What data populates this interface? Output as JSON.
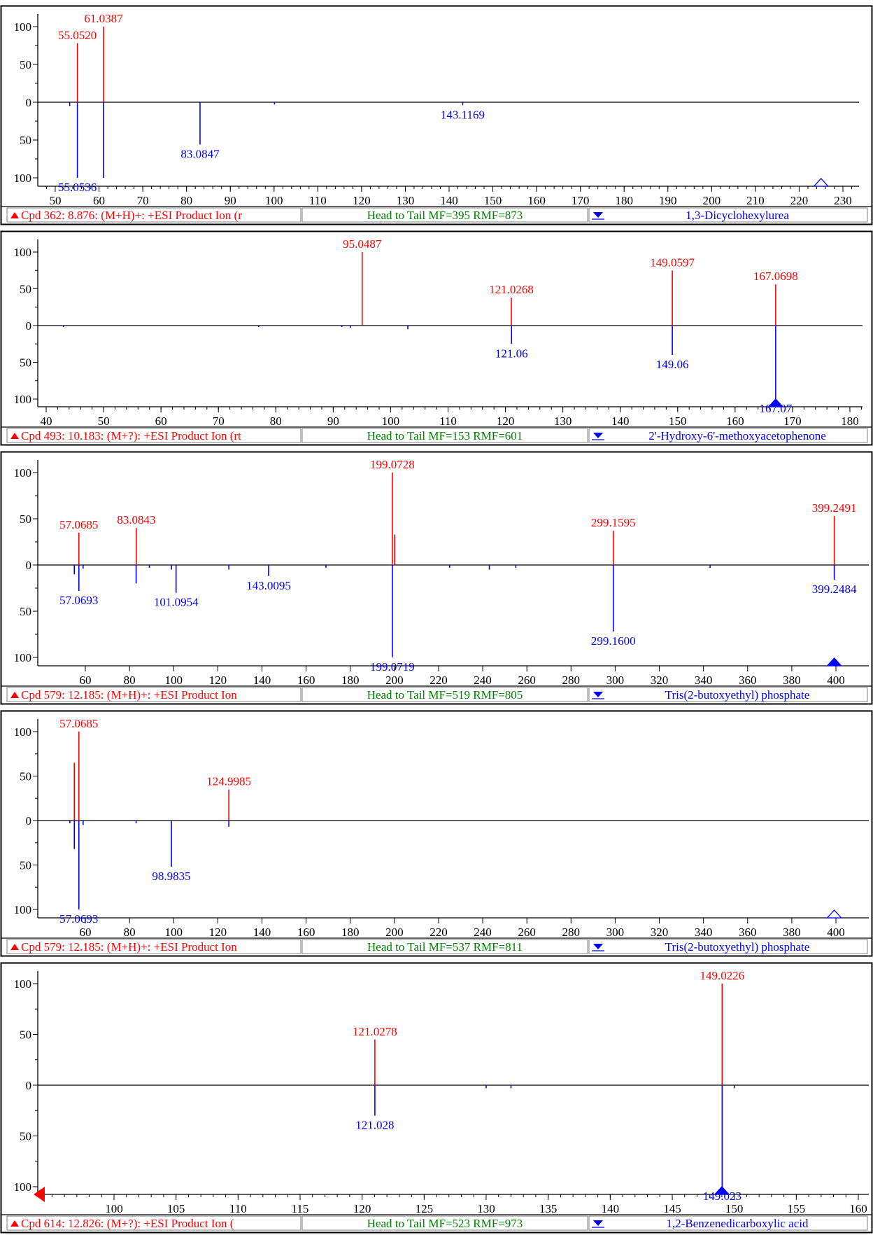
{
  "colors": {
    "library": "#ff0000",
    "sample": "#0000ff",
    "score_text": "#008000",
    "frame": "#000000",
    "status_bg": "#ffffff"
  },
  "chart_data": [
    {
      "type": "bar",
      "subtype": "head-to-tail mass spectrum",
      "xlim": [
        45,
        234
      ],
      "ylim": [
        -100,
        100
      ],
      "x_ticks": [
        50,
        60,
        70,
        80,
        90,
        100,
        110,
        120,
        130,
        140,
        150,
        160,
        170,
        180,
        190,
        200,
        210,
        220,
        230
      ],
      "y_ticks_top": [
        "100",
        "50",
        "0"
      ],
      "y_ticks_bottom": [
        "50",
        "100"
      ],
      "marker": {
        "x": 225,
        "style": "hollow-triangle"
      },
      "head_peaks": [
        {
          "mz": 55.052,
          "intensity": 78,
          "label": "55.0520"
        },
        {
          "mz": 61.0387,
          "intensity": 100,
          "label": "61.0387"
        }
      ],
      "tail_peaks": [
        {
          "mz": 53.3,
          "intensity": 5,
          "label": ""
        },
        {
          "mz": 55.0536,
          "intensity": 100,
          "label": "55.0536"
        },
        {
          "mz": 61.0,
          "intensity": 100,
          "label": ""
        },
        {
          "mz": 83.0847,
          "intensity": 56,
          "label": "83.0847"
        },
        {
          "mz": 100.1,
          "intensity": 3,
          "label": ""
        },
        {
          "mz": 143.1169,
          "intensity": 4,
          "label": "143.1169"
        }
      ],
      "status": {
        "compound": "Cpd 362: 8.876: (M+H)+: +ESI Product Ion (r",
        "score": "Head to Tail MF=395 RMF=873",
        "library_hit": "1,3-Dicyclohexylurea"
      }
    },
    {
      "type": "bar",
      "subtype": "head-to-tail mass spectrum",
      "xlim": [
        36,
        183
      ],
      "ylim": [
        -100,
        100
      ],
      "x_ticks": [
        40,
        50,
        60,
        70,
        80,
        90,
        100,
        110,
        120,
        130,
        140,
        150,
        160,
        170,
        180
      ],
      "y_ticks_top": [
        "100",
        "50",
        "0"
      ],
      "y_ticks_bottom": [
        "50",
        "100"
      ],
      "marker": {
        "x": 167.07,
        "style": "filled-triangle"
      },
      "head_peaks": [
        {
          "mz": 95.0487,
          "intensity": 100,
          "label": "95.0487"
        },
        {
          "mz": 121.0268,
          "intensity": 38,
          "label": "121.0268"
        },
        {
          "mz": 149.0597,
          "intensity": 75,
          "label": "149.0597"
        },
        {
          "mz": 167.0698,
          "intensity": 56,
          "label": "167.0698"
        }
      ],
      "tail_peaks": [
        {
          "mz": 43.0,
          "intensity": 2,
          "label": ""
        },
        {
          "mz": 77.0,
          "intensity": 2,
          "label": ""
        },
        {
          "mz": 91.5,
          "intensity": 2,
          "label": ""
        },
        {
          "mz": 93.0,
          "intensity": 3,
          "label": ""
        },
        {
          "mz": 103.0,
          "intensity": 5,
          "label": ""
        },
        {
          "mz": 121.06,
          "intensity": 25,
          "label": "121.06"
        },
        {
          "mz": 149.06,
          "intensity": 40,
          "label": "149.06"
        },
        {
          "mz": 167.07,
          "intensity": 100,
          "label": "167.07"
        }
      ],
      "status": {
        "compound": "Cpd 493: 10.183: (M+?): +ESI Product Ion (rt",
        "score": "Head to Tail MF=153 RMF=601",
        "library_hit": "2'-Hydroxy-6'-methoxyacetophenone"
      }
    },
    {
      "type": "bar",
      "subtype": "head-to-tail mass spectrum",
      "xlim": [
        37,
        420
      ],
      "ylim": [
        -100,
        100
      ],
      "x_ticks": [
        60,
        80,
        100,
        120,
        140,
        160,
        180,
        200,
        220,
        240,
        260,
        280,
        300,
        320,
        340,
        360,
        380,
        400
      ],
      "y_ticks_top": [
        "100",
        "50",
        "0"
      ],
      "y_ticks_bottom": [
        "50",
        "100"
      ],
      "marker": {
        "x": 399.25,
        "style": "filled-triangle"
      },
      "head_peaks": [
        {
          "mz": 57.0685,
          "intensity": 35,
          "label": "57.0685"
        },
        {
          "mz": 83.0843,
          "intensity": 40,
          "label": "83.0843"
        },
        {
          "mz": 199.0728,
          "intensity": 100,
          "label": "199.0728"
        },
        {
          "mz": 200.07,
          "intensity": 33,
          "label": ""
        },
        {
          "mz": 299.1595,
          "intensity": 37,
          "label": "299.1595"
        },
        {
          "mz": 399.2491,
          "intensity": 53,
          "label": "399.2491"
        }
      ],
      "tail_peaks": [
        {
          "mz": 55.0,
          "intensity": 10,
          "label": ""
        },
        {
          "mz": 57.0693,
          "intensity": 28,
          "label": "57.0693"
        },
        {
          "mz": 59.0,
          "intensity": 4,
          "label": ""
        },
        {
          "mz": 83.0,
          "intensity": 20,
          "label": ""
        },
        {
          "mz": 89.0,
          "intensity": 3,
          "label": ""
        },
        {
          "mz": 99.0,
          "intensity": 5,
          "label": ""
        },
        {
          "mz": 101.0954,
          "intensity": 30,
          "label": "101.0954"
        },
        {
          "mz": 125.0,
          "intensity": 5,
          "label": ""
        },
        {
          "mz": 143.0095,
          "intensity": 12,
          "label": "143.0095"
        },
        {
          "mz": 169.0,
          "intensity": 3,
          "label": ""
        },
        {
          "mz": 199.0719,
          "intensity": 100,
          "label": "199.0719"
        },
        {
          "mz": 225.0,
          "intensity": 3,
          "label": ""
        },
        {
          "mz": 243.0,
          "intensity": 5,
          "label": ""
        },
        {
          "mz": 255.0,
          "intensity": 3,
          "label": ""
        },
        {
          "mz": 299.16,
          "intensity": 72,
          "label": "299.1600"
        },
        {
          "mz": 343.0,
          "intensity": 3,
          "label": ""
        },
        {
          "mz": 399.2484,
          "intensity": 16,
          "label": "399.2484"
        }
      ],
      "status": {
        "compound": "Cpd 579: 12.185: (M+H)+: +ESI Product Ion",
        "score": "Head to Tail MF=519 RMF=805",
        "library_hit": "Tris(2-butoxyethyl) phosphate"
      }
    },
    {
      "type": "bar",
      "subtype": "head-to-tail mass spectrum",
      "xlim": [
        37,
        420
      ],
      "ylim": [
        -100,
        100
      ],
      "x_ticks": [
        60,
        80,
        100,
        120,
        140,
        160,
        180,
        200,
        220,
        240,
        260,
        280,
        300,
        320,
        340,
        360,
        380,
        400
      ],
      "y_ticks_top": [
        "100",
        "50",
        "0"
      ],
      "y_ticks_bottom": [
        "50",
        "100"
      ],
      "marker": {
        "x": 399.25,
        "style": "hollow-triangle"
      },
      "head_peaks": [
        {
          "mz": 55.0,
          "intensity": 65,
          "label": ""
        },
        {
          "mz": 57.0685,
          "intensity": 100,
          "label": "57.0685"
        },
        {
          "mz": 124.9985,
          "intensity": 35,
          "label": "124.9985"
        }
      ],
      "tail_peaks": [
        {
          "mz": 53.0,
          "intensity": 3,
          "label": ""
        },
        {
          "mz": 55.0,
          "intensity": 32,
          "label": ""
        },
        {
          "mz": 57.0693,
          "intensity": 100,
          "label": "57.0693"
        },
        {
          "mz": 59.0,
          "intensity": 5,
          "label": ""
        },
        {
          "mz": 83.0,
          "intensity": 3,
          "label": ""
        },
        {
          "mz": 98.9835,
          "intensity": 52,
          "label": "98.9835"
        },
        {
          "mz": 125.0,
          "intensity": 7,
          "label": ""
        }
      ],
      "status": {
        "compound": "Cpd 579: 12.185: (M+H)+: +ESI Product Ion",
        "score": "Head to Tail MF=537 RMF=811",
        "library_hit": "Tris(2-butoxyethyl) phosphate"
      }
    },
    {
      "type": "bar",
      "subtype": "head-to-tail mass spectrum",
      "xlim": [
        94.5,
        161
      ],
      "ylim": [
        -100,
        100
      ],
      "x_ticks": [
        100,
        105,
        110,
        115,
        120,
        125,
        130,
        135,
        140,
        145,
        150,
        155,
        160
      ],
      "y_ticks_top": [
        "100",
        "50",
        "0"
      ],
      "y_ticks_bottom": [
        "50",
        "100"
      ],
      "marker": {
        "x": 149.0,
        "style": "filled-triangle"
      },
      "left_scroll_marker": true,
      "head_peaks": [
        {
          "mz": 121.0278,
          "intensity": 45,
          "label": "121.0278"
        },
        {
          "mz": 149.0226,
          "intensity": 100,
          "label": "149.0226"
        }
      ],
      "tail_peaks": [
        {
          "mz": 121.028,
          "intensity": 30,
          "label": "121.028"
        },
        {
          "mz": 130.0,
          "intensity": 3,
          "label": ""
        },
        {
          "mz": 132.0,
          "intensity": 3,
          "label": ""
        },
        {
          "mz": 149.023,
          "intensity": 100,
          "label": "149.023"
        },
        {
          "mz": 150.0,
          "intensity": 3,
          "label": ""
        }
      ],
      "status": {
        "compound": "Cpd 614: 12.826: (M+?): +ESI Product Ion (",
        "score": "Head to Tail MF=523 RMF=973",
        "library_hit": "1,2-Benzenedicarboxylic acid"
      }
    }
  ]
}
